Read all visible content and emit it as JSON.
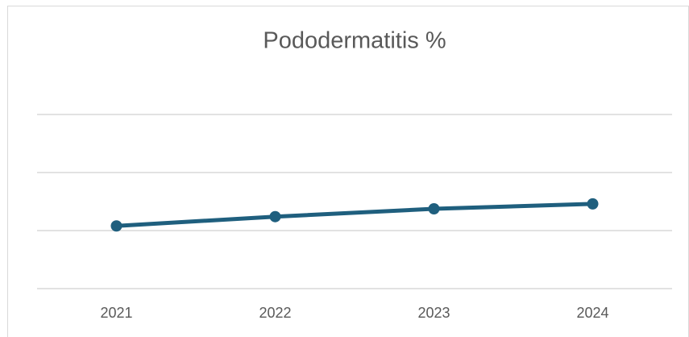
{
  "chart_data": {
    "type": "line",
    "title": "Pododermatitis %",
    "categories": [
      "2021",
      "2022",
      "2023",
      "2024"
    ],
    "series": [
      {
        "name": "Pododermatitis %",
        "color": "#1f5f7e",
        "values": [
          10.8,
          12.4,
          13.75,
          14.6
        ]
      }
    ],
    "ylim": [
      0,
      30
    ],
    "yticks": [
      0,
      10,
      20,
      30
    ],
    "grid": true,
    "show_ytick_labels": false,
    "legend": false
  }
}
